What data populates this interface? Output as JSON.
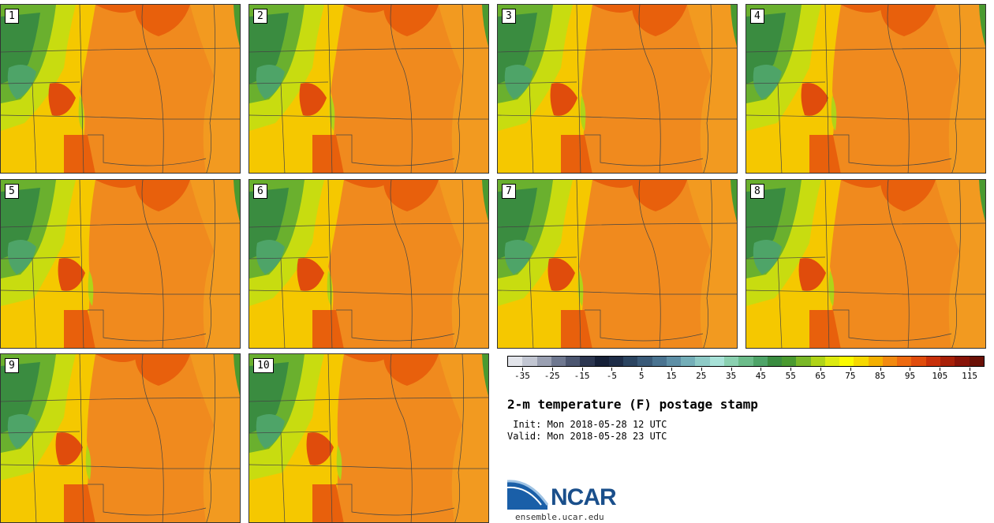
{
  "panels": [
    {
      "label": "1"
    },
    {
      "label": "2"
    },
    {
      "label": "3"
    },
    {
      "label": "4"
    },
    {
      "label": "5"
    },
    {
      "label": "6"
    },
    {
      "label": "7"
    },
    {
      "label": "8"
    },
    {
      "label": "9"
    },
    {
      "label": "10"
    }
  ],
  "legend": {
    "ticks": [
      "-35",
      "-25",
      "-15",
      "-5",
      "5",
      "15",
      "25",
      "35",
      "45",
      "55",
      "65",
      "75",
      "85",
      "95",
      "105",
      "115"
    ],
    "range": [
      -40,
      120
    ],
    "colors": [
      "#e2e4ea",
      "#c2c6d2",
      "#9aa0b2",
      "#6f7890",
      "#4c5670",
      "#2c3650",
      "#162038",
      "#1e2d48",
      "#2b4460",
      "#3a5a78",
      "#4a7390",
      "#5e8fa6",
      "#74aeb8",
      "#8ecac6",
      "#a8e2d8",
      "#8ad0b0",
      "#6cbc8a",
      "#4ea468",
      "#3a8c40",
      "#4a9a30",
      "#7ab828",
      "#b0d418",
      "#dcea10",
      "#fafa00",
      "#f6d800",
      "#f4b000",
      "#f28a10",
      "#ee6a10",
      "#e04c0c",
      "#c8300a",
      "#a82008",
      "#881408",
      "#6a1006"
    ]
  },
  "title": "2-m temperature (F) postage stamp",
  "init": " Init: Mon 2018-05-28 12 UTC",
  "valid": "Valid: Mon 2018-05-28 23 UTC",
  "logo": {
    "text": "NCAR",
    "url": "ensemble.ucar.edu",
    "color": "#1a4f8b"
  }
}
